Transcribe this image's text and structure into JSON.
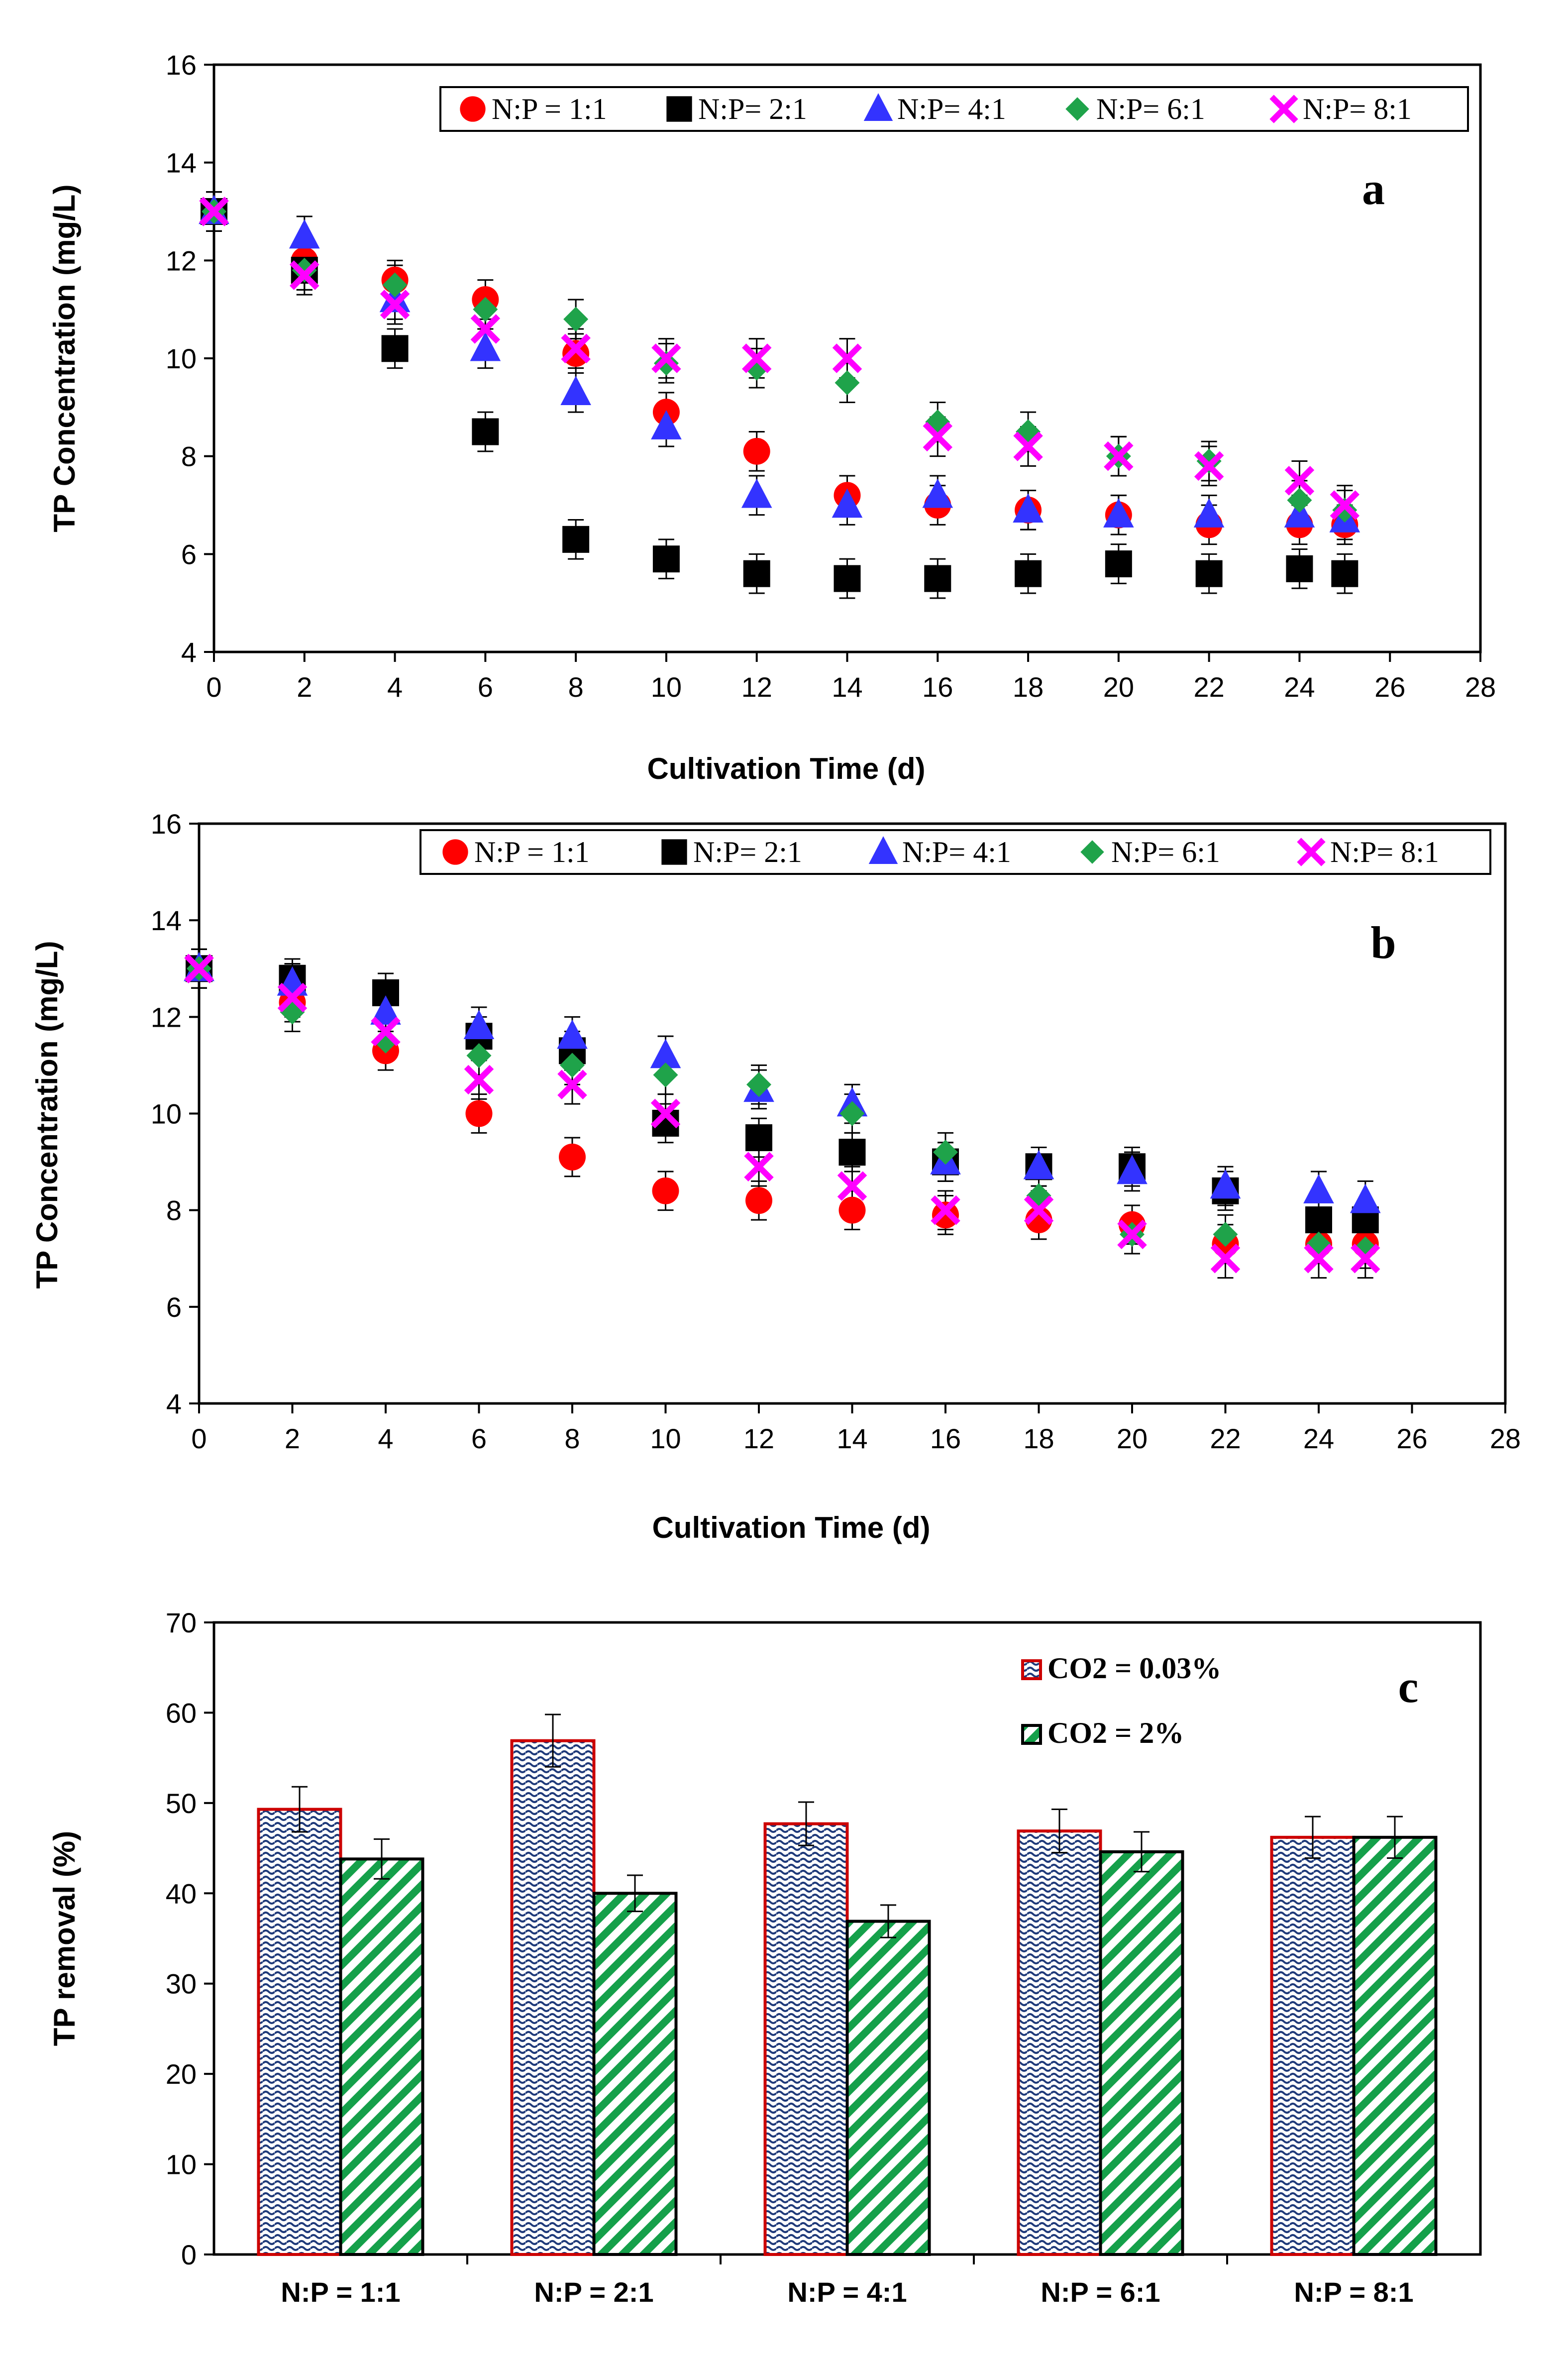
{
  "colors": {
    "np_1_1": "#ff0000",
    "np_2_1": "#000000",
    "np_4_1": "#3333ff",
    "np_6_1": "#1fa34a",
    "np_8_1": "#ff00ff",
    "bar_co2_003_fill": "#1f3a7a",
    "bar_co2_003_edge": "#cc0000",
    "bar_co2_2_fill": "#15a04a",
    "bar_co2_2_edge": "#000000"
  },
  "chart_data": [
    {
      "id": "a",
      "type": "scatter",
      "panel_label": "a",
      "xlabel": "Cultivation Time (d)",
      "ylabel": "TP Concentration (mg/L)",
      "xlim": [
        0,
        28
      ],
      "ylim": [
        4,
        16
      ],
      "xticks": [
        "0",
        "2",
        "4",
        "6",
        "8",
        "10",
        "12",
        "14",
        "16",
        "18",
        "20",
        "22",
        "24",
        "26",
        "28"
      ],
      "yticks": [
        "4",
        "6",
        "8",
        "10",
        "12",
        "14",
        "16"
      ],
      "legend_location": "top",
      "x": [
        0,
        2,
        4,
        6,
        8,
        10,
        12,
        14,
        16,
        18,
        20,
        22,
        24,
        25
      ],
      "series": [
        {
          "key": "np_1_1",
          "name": "N:P = 1:1",
          "marker": "circle",
          "values": [
            13,
            12.0,
            11.6,
            11.2,
            10.1,
            8.9,
            8.1,
            7.2,
            7.0,
            6.9,
            6.8,
            6.6,
            6.6,
            6.6
          ],
          "error": 0.4
        },
        {
          "key": "np_2_1",
          "name": "N:P= 2:1",
          "marker": "square",
          "values": [
            13,
            11.8,
            10.2,
            8.5,
            6.3,
            5.9,
            5.6,
            5.5,
            5.5,
            5.6,
            5.8,
            5.6,
            5.7,
            5.6
          ],
          "error": 0.4
        },
        {
          "key": "np_4_1",
          "name": "N:P= 4:1",
          "marker": "triangle",
          "values": [
            13,
            12.5,
            11.2,
            10.2,
            9.3,
            8.6,
            7.2,
            7.0,
            7.2,
            6.9,
            6.8,
            6.8,
            6.8,
            6.7
          ],
          "error": 0.4
        },
        {
          "key": "np_6_1",
          "name": "N:P= 6:1",
          "marker": "diamond",
          "values": [
            13,
            11.8,
            11.5,
            11.0,
            10.8,
            9.9,
            9.8,
            9.5,
            8.7,
            8.5,
            8.0,
            7.9,
            7.1,
            6.9
          ],
          "error": 0.4
        },
        {
          "key": "np_8_1",
          "name": "N:P= 8:1",
          "marker": "x",
          "values": [
            13,
            11.7,
            11.1,
            10.6,
            10.2,
            10.0,
            10.0,
            10.0,
            8.4,
            8.2,
            8.0,
            7.8,
            7.5,
            7.0
          ],
          "error": 0.4
        }
      ]
    },
    {
      "id": "b",
      "type": "scatter",
      "panel_label": "b",
      "xlabel": "Cultivation Time (d)",
      "ylabel": "TP Concentration (mg/L)",
      "xlim": [
        0,
        28
      ],
      "ylim": [
        4,
        16
      ],
      "xticks": [
        "0",
        "2",
        "4",
        "6",
        "8",
        "10",
        "12",
        "14",
        "16",
        "18",
        "20",
        "22",
        "24",
        "26",
        "28"
      ],
      "yticks": [
        "4",
        "6",
        "8",
        "10",
        "12",
        "14",
        "16"
      ],
      "legend_location": "top",
      "x": [
        0,
        2,
        4,
        6,
        8,
        10,
        12,
        14,
        16,
        18,
        20,
        22,
        24,
        25
      ],
      "series": [
        {
          "key": "np_1_1",
          "name": "N:P = 1:1",
          "marker": "circle",
          "values": [
            13,
            12.3,
            11.3,
            10.0,
            9.1,
            8.4,
            8.2,
            8.0,
            7.9,
            7.8,
            7.7,
            7.3,
            7.3,
            7.3
          ],
          "error": 0.4
        },
        {
          "key": "np_2_1",
          "name": "N:P= 2:1",
          "marker": "square",
          "values": [
            13,
            12.8,
            12.5,
            11.6,
            11.3,
            9.8,
            9.5,
            9.2,
            9.0,
            8.9,
            8.9,
            8.4,
            7.8,
            7.8
          ],
          "error": 0.4
        },
        {
          "key": "np_4_1",
          "name": "N:P= 4:1",
          "marker": "triangle",
          "values": [
            13,
            12.7,
            12.1,
            11.8,
            11.6,
            11.2,
            10.5,
            10.2,
            9.0,
            8.9,
            8.8,
            8.5,
            8.4,
            8.2
          ],
          "error": 0.4
        },
        {
          "key": "np_6_1",
          "name": "N:P= 6:1",
          "marker": "diamond",
          "values": [
            13,
            12.1,
            11.5,
            11.2,
            11.0,
            10.8,
            10.6,
            10.0,
            9.2,
            8.3,
            7.5,
            7.5,
            7.3,
            7.2
          ],
          "error": 0.4
        },
        {
          "key": "np_8_1",
          "name": "N:P= 8:1",
          "marker": "x",
          "values": [
            13,
            12.4,
            11.7,
            10.7,
            10.6,
            10.0,
            8.9,
            8.5,
            8.0,
            8.0,
            7.5,
            7.0,
            7.0,
            7.0
          ],
          "error": 0.4
        }
      ]
    },
    {
      "id": "c",
      "type": "bar",
      "panel_label": "c",
      "xlabel": "",
      "ylabel": "TP removal (%)",
      "ylim": [
        0,
        70
      ],
      "yticks": [
        "0",
        "10",
        "20",
        "30",
        "40",
        "50",
        "60",
        "70"
      ],
      "categories": [
        "N:P = 1:1",
        "N:P = 2:1",
        "N:P = 4:1",
        "N:P = 6:1",
        "N:P = 8:1"
      ],
      "legend_location": "top-right",
      "series": [
        {
          "key": "co2_003",
          "name": "CO2 = 0.03%",
          "values": [
            49.3,
            56.9,
            47.7,
            46.9,
            46.2
          ],
          "errors": [
            2.5,
            2.9,
            2.4,
            2.4,
            2.3
          ]
        },
        {
          "key": "co2_2",
          "name": "CO2 = 2%",
          "values": [
            43.8,
            40.0,
            36.9,
            44.6,
            46.2
          ],
          "errors": [
            2.2,
            2.0,
            1.8,
            2.2,
            2.3
          ]
        }
      ]
    }
  ]
}
